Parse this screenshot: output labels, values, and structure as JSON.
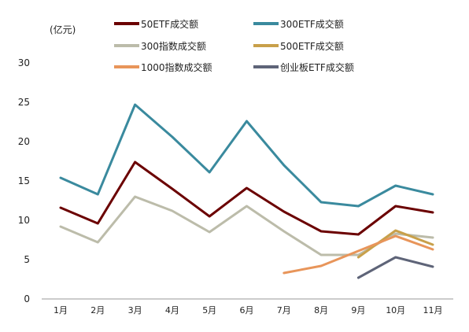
{
  "chart_data": {
    "type": "line",
    "ylabel": "(亿元)",
    "ylim": [
      0,
      30
    ],
    "y_ticks": [
      "0",
      "5",
      "10",
      "15",
      "20",
      "25",
      "30"
    ],
    "categories": [
      "1月",
      "2月",
      "3月",
      "4月",
      "5月",
      "6月",
      "7月",
      "8月",
      "9月",
      "10月",
      "11月"
    ],
    "grid": false,
    "legend_position": "top",
    "series": [
      {
        "name": "50ETF成交额",
        "color": "#6b0000",
        "values": [
          11.6,
          9.6,
          17.4,
          14.0,
          10.5,
          14.1,
          11.1,
          8.6,
          8.2,
          11.8,
          11.0
        ]
      },
      {
        "name": "300ETF成交额",
        "color": "#3a8a9e",
        "values": [
          15.4,
          13.3,
          24.7,
          20.6,
          16.1,
          22.6,
          17.0,
          12.3,
          11.8,
          14.4,
          13.3
        ]
      },
      {
        "name": "300指数成交额",
        "color": "#bcbcaa",
        "values": [
          9.2,
          7.2,
          13.0,
          11.2,
          8.5,
          11.8,
          8.6,
          5.6,
          5.6,
          8.3,
          7.8
        ]
      },
      {
        "name": "500ETF成交额",
        "color": "#c8a04a",
        "values": [
          null,
          null,
          null,
          null,
          null,
          null,
          null,
          null,
          5.3,
          8.7,
          6.9
        ]
      },
      {
        "name": "1000指数成交额",
        "color": "#e8955a",
        "values": [
          null,
          null,
          null,
          null,
          null,
          null,
          3.3,
          4.2,
          6.1,
          8.0,
          6.3
        ]
      },
      {
        "name": "创业板ETF成交额",
        "color": "#5e6478",
        "values": [
          null,
          null,
          null,
          null,
          null,
          null,
          null,
          null,
          2.7,
          5.3,
          4.1
        ]
      }
    ]
  }
}
